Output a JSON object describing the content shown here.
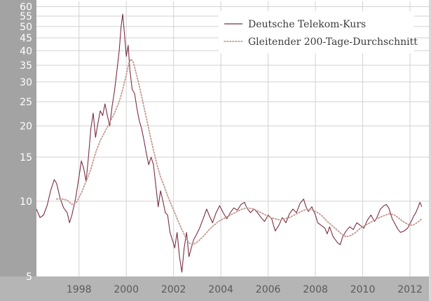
{
  "chart_data": {
    "type": "line",
    "x_axis": {
      "range": [
        1996.2,
        2012.8
      ],
      "tick_labels": [
        "1998",
        "2000",
        "2002",
        "2004",
        "2006",
        "2008",
        "2010",
        "2012"
      ],
      "tick_values": [
        1998,
        2000,
        2002,
        2004,
        2006,
        2008,
        2010,
        2012
      ]
    },
    "y_axis": {
      "scale": "log",
      "range": [
        5,
        63
      ],
      "tick_labels": [
        "5",
        "10",
        "15",
        "20",
        "25",
        "30",
        "35",
        "40",
        "45",
        "50",
        "55",
        "60"
      ],
      "tick_values": [
        5,
        10,
        15,
        20,
        25,
        30,
        35,
        40,
        45,
        50,
        55,
        60
      ]
    },
    "grid": true,
    "legend": {
      "position": "top-right"
    },
    "series": [
      {
        "name": "Deutsche Telekom-Kurs",
        "style": "solid",
        "color": "#7a2e42",
        "points": [
          [
            1996.2,
            9.3
          ],
          [
            1996.35,
            8.6
          ],
          [
            1996.5,
            8.8
          ],
          [
            1996.65,
            9.6
          ],
          [
            1996.8,
            11.0
          ],
          [
            1996.95,
            12.2
          ],
          [
            1997.05,
            11.8
          ],
          [
            1997.2,
            10.3
          ],
          [
            1997.35,
            9.4
          ],
          [
            1997.5,
            9.0
          ],
          [
            1997.6,
            8.2
          ],
          [
            1997.7,
            8.8
          ],
          [
            1997.85,
            10.2
          ],
          [
            1998.0,
            12.5
          ],
          [
            1998.1,
            14.5
          ],
          [
            1998.2,
            13.5
          ],
          [
            1998.3,
            12.0
          ],
          [
            1998.4,
            15.0
          ],
          [
            1998.5,
            19.5
          ],
          [
            1998.6,
            22.5
          ],
          [
            1998.7,
            18.0
          ],
          [
            1998.8,
            20.5
          ],
          [
            1998.9,
            23.0
          ],
          [
            1999.0,
            22.0
          ],
          [
            1999.1,
            24.5
          ],
          [
            1999.2,
            22.0
          ],
          [
            1999.3,
            20.0
          ],
          [
            1999.4,
            24.0
          ],
          [
            1999.5,
            27.5
          ],
          [
            1999.6,
            33.0
          ],
          [
            1999.7,
            40.0
          ],
          [
            1999.78,
            50.0
          ],
          [
            1999.85,
            56.0
          ],
          [
            1999.92,
            47.0
          ],
          [
            2000.0,
            38.0
          ],
          [
            2000.08,
            42.0
          ],
          [
            2000.15,
            33.5
          ],
          [
            2000.25,
            28.0
          ],
          [
            2000.35,
            27.0
          ],
          [
            2000.45,
            23.5
          ],
          [
            2000.55,
            21.0
          ],
          [
            2000.65,
            19.5
          ],
          [
            2000.75,
            17.5
          ],
          [
            2000.85,
            15.5
          ],
          [
            2000.95,
            14.0
          ],
          [
            2001.05,
            15.0
          ],
          [
            2001.15,
            14.0
          ],
          [
            2001.25,
            11.5
          ],
          [
            2001.35,
            9.5
          ],
          [
            2001.45,
            11.0
          ],
          [
            2001.55,
            10.0
          ],
          [
            2001.65,
            9.0
          ],
          [
            2001.75,
            8.8
          ],
          [
            2001.85,
            7.5
          ],
          [
            2001.95,
            7.0
          ],
          [
            2002.05,
            6.5
          ],
          [
            2002.15,
            7.5
          ],
          [
            2002.25,
            6.0
          ],
          [
            2002.35,
            5.2
          ],
          [
            2002.45,
            6.5
          ],
          [
            2002.55,
            7.5
          ],
          [
            2002.65,
            6.0
          ],
          [
            2002.75,
            6.5
          ],
          [
            2002.85,
            7.0
          ],
          [
            2002.95,
            7.3
          ],
          [
            2003.1,
            7.8
          ],
          [
            2003.25,
            8.5
          ],
          [
            2003.4,
            9.3
          ],
          [
            2003.5,
            8.8
          ],
          [
            2003.65,
            8.2
          ],
          [
            2003.8,
            9.0
          ],
          [
            2003.95,
            9.6
          ],
          [
            2004.1,
            9.0
          ],
          [
            2004.25,
            8.5
          ],
          [
            2004.4,
            9.0
          ],
          [
            2004.55,
            9.4
          ],
          [
            2004.7,
            9.2
          ],
          [
            2004.85,
            9.7
          ],
          [
            2005.0,
            9.9
          ],
          [
            2005.1,
            9.4
          ],
          [
            2005.25,
            9.0
          ],
          [
            2005.4,
            9.3
          ],
          [
            2005.55,
            9.0
          ],
          [
            2005.7,
            8.6
          ],
          [
            2005.85,
            8.3
          ],
          [
            2006.0,
            8.8
          ],
          [
            2006.15,
            8.5
          ],
          [
            2006.3,
            7.6
          ],
          [
            2006.45,
            8.0
          ],
          [
            2006.6,
            8.6
          ],
          [
            2006.75,
            8.2
          ],
          [
            2006.9,
            8.9
          ],
          [
            2007.05,
            9.3
          ],
          [
            2007.2,
            9.0
          ],
          [
            2007.35,
            9.8
          ],
          [
            2007.5,
            10.2
          ],
          [
            2007.6,
            9.5
          ],
          [
            2007.7,
            9.1
          ],
          [
            2007.85,
            9.5
          ],
          [
            2008.0,
            8.8
          ],
          [
            2008.1,
            8.2
          ],
          [
            2008.25,
            8.0
          ],
          [
            2008.4,
            7.8
          ],
          [
            2008.5,
            7.4
          ],
          [
            2008.6,
            7.9
          ],
          [
            2008.75,
            7.2
          ],
          [
            2008.85,
            7.0
          ],
          [
            2008.95,
            6.8
          ],
          [
            2009.05,
            6.7
          ],
          [
            2009.15,
            7.2
          ],
          [
            2009.3,
            7.6
          ],
          [
            2009.45,
            7.9
          ],
          [
            2009.6,
            7.7
          ],
          [
            2009.75,
            8.2
          ],
          [
            2009.9,
            8.0
          ],
          [
            2010.05,
            7.8
          ],
          [
            2010.2,
            8.4
          ],
          [
            2010.35,
            8.8
          ],
          [
            2010.5,
            8.3
          ],
          [
            2010.6,
            8.6
          ],
          [
            2010.75,
            9.3
          ],
          [
            2010.9,
            9.6
          ],
          [
            2011.0,
            9.7
          ],
          [
            2011.1,
            9.4
          ],
          [
            2011.25,
            8.5
          ],
          [
            2011.4,
            8.0
          ],
          [
            2011.5,
            7.7
          ],
          [
            2011.6,
            7.5
          ],
          [
            2011.75,
            7.6
          ],
          [
            2011.9,
            7.8
          ],
          [
            2012.05,
            8.3
          ],
          [
            2012.15,
            8.7
          ],
          [
            2012.25,
            9.0
          ],
          [
            2012.35,
            9.5
          ],
          [
            2012.42,
            9.9
          ],
          [
            2012.5,
            9.5
          ]
        ]
      },
      {
        "name": "Gleitender 200-Tage-Durchschnitt",
        "style": "dotted",
        "color": "#c49a90",
        "points": [
          [
            1997.05,
            10.2
          ],
          [
            1997.3,
            10.2
          ],
          [
            1997.5,
            10.1
          ],
          [
            1997.7,
            9.7
          ],
          [
            1997.9,
            9.9
          ],
          [
            1998.1,
            10.8
          ],
          [
            1998.3,
            12.0
          ],
          [
            1998.5,
            13.4
          ],
          [
            1998.7,
            15.6
          ],
          [
            1998.9,
            17.5
          ],
          [
            1999.1,
            19.0
          ],
          [
            1999.3,
            20.7
          ],
          [
            1999.5,
            22.5
          ],
          [
            1999.7,
            25.0
          ],
          [
            1999.85,
            28.0
          ],
          [
            2000.0,
            32.0
          ],
          [
            2000.1,
            35.5
          ],
          [
            2000.2,
            37.0
          ],
          [
            2000.3,
            36.0
          ],
          [
            2000.4,
            33.0
          ],
          [
            2000.55,
            29.0
          ],
          [
            2000.7,
            25.0
          ],
          [
            2000.85,
            21.5
          ],
          [
            2001.0,
            18.5
          ],
          [
            2001.15,
            16.0
          ],
          [
            2001.3,
            14.0
          ],
          [
            2001.45,
            12.5
          ],
          [
            2001.6,
            11.5
          ],
          [
            2001.75,
            10.5
          ],
          [
            2001.9,
            9.7
          ],
          [
            2002.05,
            9.0
          ],
          [
            2002.2,
            8.3
          ],
          [
            2002.35,
            7.7
          ],
          [
            2002.5,
            7.2
          ],
          [
            2002.65,
            6.8
          ],
          [
            2002.8,
            6.7
          ],
          [
            2002.95,
            6.8
          ],
          [
            2003.1,
            7.0
          ],
          [
            2003.3,
            7.3
          ],
          [
            2003.5,
            7.7
          ],
          [
            2003.7,
            8.0
          ],
          [
            2003.9,
            8.3
          ],
          [
            2004.1,
            8.5
          ],
          [
            2004.3,
            8.7
          ],
          [
            2004.5,
            8.9
          ],
          [
            2004.7,
            9.1
          ],
          [
            2004.9,
            9.3
          ],
          [
            2005.1,
            9.4
          ],
          [
            2005.3,
            9.35
          ],
          [
            2005.5,
            9.2
          ],
          [
            2005.7,
            9.0
          ],
          [
            2005.9,
            8.8
          ],
          [
            2006.1,
            8.6
          ],
          [
            2006.3,
            8.5
          ],
          [
            2006.5,
            8.4
          ],
          [
            2006.7,
            8.5
          ],
          [
            2006.9,
            8.6
          ],
          [
            2007.1,
            8.8
          ],
          [
            2007.3,
            9.0
          ],
          [
            2007.5,
            9.2
          ],
          [
            2007.7,
            9.3
          ],
          [
            2007.9,
            9.2
          ],
          [
            2008.1,
            9.0
          ],
          [
            2008.3,
            8.7
          ],
          [
            2008.5,
            8.3
          ],
          [
            2008.7,
            8.0
          ],
          [
            2008.9,
            7.7
          ],
          [
            2009.1,
            7.4
          ],
          [
            2009.3,
            7.2
          ],
          [
            2009.5,
            7.3
          ],
          [
            2009.7,
            7.5
          ],
          [
            2009.9,
            7.8
          ],
          [
            2010.1,
            8.0
          ],
          [
            2010.3,
            8.2
          ],
          [
            2010.5,
            8.4
          ],
          [
            2010.7,
            8.6
          ],
          [
            2010.9,
            8.75
          ],
          [
            2011.1,
            8.9
          ],
          [
            2011.3,
            8.85
          ],
          [
            2011.5,
            8.6
          ],
          [
            2011.7,
            8.3
          ],
          [
            2011.9,
            8.1
          ],
          [
            2012.1,
            8.0
          ],
          [
            2012.3,
            8.2
          ],
          [
            2012.5,
            8.5
          ]
        ]
      }
    ]
  }
}
